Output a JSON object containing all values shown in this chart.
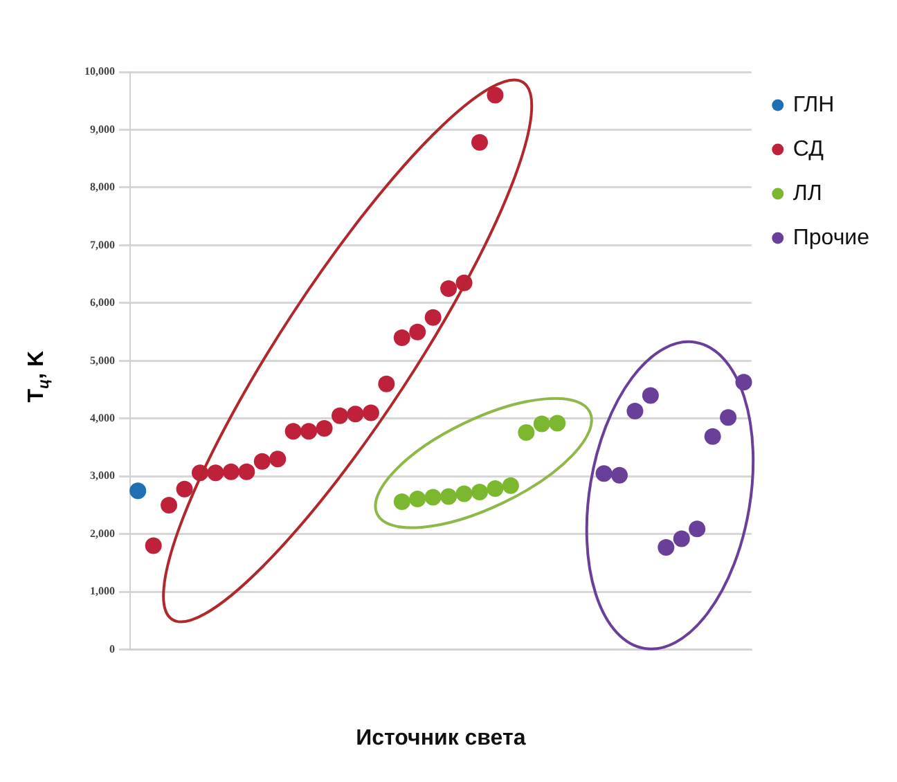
{
  "chart_data": {
    "type": "scatter",
    "xlabel": "Источник света",
    "ylabel": "T$_{ц}$, K",
    "categories": [
      null,
      null,
      null,
      null,
      null,
      null,
      null,
      null,
      null,
      null,
      null,
      null,
      null,
      null,
      null,
      null,
      null,
      null,
      null,
      null,
      null,
      null,
      null,
      null,
      null,
      null,
      null,
      null,
      null,
      null,
      null,
      null,
      null,
      null,
      null,
      null,
      null,
      null,
      null,
      null
    ],
    "ylim": [
      0,
      10000
    ],
    "yticks": [
      0,
      {
        "value": 1000,
        "label": "1,000"
      },
      {
        "value": 2000,
        "label": "2,000"
      },
      {
        "value": 3000,
        "label": "3,000"
      },
      {
        "value": 4000,
        "label": "4,000"
      },
      {
        "value": 5000,
        "label": "5,000"
      },
      {
        "value": 6000,
        "label": "6,000"
      },
      {
        "value": 7000,
        "label": "7,000"
      },
      {
        "value": 8000,
        "label": "8,000"
      },
      {
        "value": 9000,
        "label": "9,000"
      },
      {
        "value": 10000,
        "label": "10,000"
      }
    ],
    "grid": "y",
    "legend": "top right",
    "marker": "circle",
    "series": [
      {
        "name": "ГЛН",
        "color": "#1f6fb5",
        "values": [
          2750,
          null,
          null,
          null,
          null,
          null,
          null,
          null,
          null,
          null,
          null,
          null,
          null,
          null,
          null,
          null,
          null,
          null,
          null,
          null,
          null,
          null,
          null,
          null,
          null,
          null,
          null,
          null,
          null,
          null,
          null,
          null,
          null,
          null,
          null,
          null,
          null,
          null,
          null,
          null
        ]
      },
      {
        "name": "СД",
        "color": "#c0213a",
        "values": [
          null,
          1800,
          2500,
          2780,
          3060,
          3060,
          3080,
          3080,
          3260,
          3300,
          3780,
          3780,
          3830,
          4050,
          4080,
          4100,
          4600,
          5400,
          5500,
          5750,
          6250,
          6350,
          8780,
          9600,
          null,
          null,
          null,
          null,
          null,
          null,
          null,
          null,
          null,
          null,
          null,
          null,
          null,
          null,
          null,
          null
        ]
      },
      {
        "name": "ЛЛ",
        "color": "#7cb82f",
        "values": [
          null,
          null,
          null,
          null,
          null,
          null,
          null,
          null,
          null,
          null,
          null,
          null,
          null,
          null,
          null,
          null,
          null,
          2560,
          2610,
          2640,
          2650,
          2700,
          2730,
          2790,
          2840,
          3760,
          3910,
          3920,
          null,
          null,
          null,
          null,
          null,
          null,
          null,
          null,
          null,
          null,
          null,
          null
        ]
      },
      {
        "name": "Прочие",
        "color": "#6a3f99",
        "values": [
          null,
          null,
          null,
          null,
          null,
          null,
          null,
          null,
          null,
          null,
          null,
          null,
          null,
          null,
          null,
          null,
          null,
          null,
          null,
          null,
          null,
          null,
          null,
          null,
          null,
          null,
          null,
          null,
          null,
          null,
          3050,
          3020,
          4130,
          4400,
          1770,
          1920,
          2090,
          3690,
          4020,
          4630
        ]
      }
    ]
  }
}
